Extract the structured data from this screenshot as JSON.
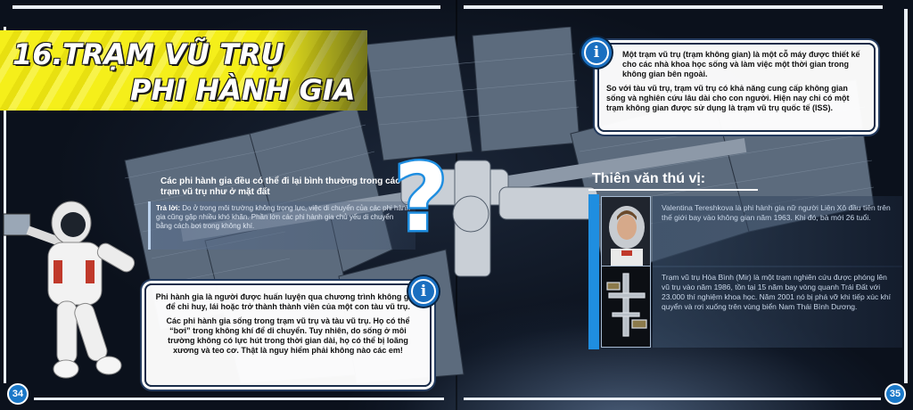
{
  "title": {
    "number": "16.",
    "line1": "TRẠM VŨ TRỤ",
    "line2": "PHI HÀNH  GIA"
  },
  "info_top": {
    "p1": "Một trạm vũ trụ (trạm không gian) là một cỗ máy được thiết kế cho các nhà khoa học sống và làm việc một thời gian trong không gian bên ngoài.",
    "p2": "So với tàu vũ trụ, trạm vũ trụ có khả năng cung cấp không gian sống và nghiên cứu lâu dài cho con người. Hiện nay chỉ có một trạm không gian được sử dụng là trạm vũ trụ quốc tế (ISS)."
  },
  "qa": {
    "question": "Các phi hành gia đều có thể đi lại bình thường trong các trạm vũ trụ như ở mặt đất",
    "answer_label": "Trả lời:",
    "answer": " Do ở trong môi trường không trọng lực, việc di chuyển của các phi hành gia cũng gặp nhiều khó khăn. Phần lớn các phi hành gia chủ yếu di chuyển bằng cách bơi trong không khí."
  },
  "info_bottom": {
    "p1": "Phi hành gia là người được huấn luyện qua chương trình không gian để chỉ huy, lái hoặc trở thành thành viên của một con tàu vũ trụ.",
    "p2": "Các phi hành gia sống trong trạm vũ trụ và tàu vũ trụ. Họ có thể “bơi” trong không khí để di chuyển. Tuy nhiên, do sống ở môi trường không có lực hút trong thời gian dài, họ có thể bị loãng xương và teo cơ. Thật là nguy hiểm phải không nào các em!"
  },
  "fun_facts": {
    "heading": "Thiên văn thú vị:",
    "items": [
      {
        "text": "Valentina Tereshkova là phi hành gia nữ người Liên Xô đầu tiên trên thế giới bay vào không gian năm 1963. Khi đó, bà mới 26 tuổi."
      },
      {
        "text": "Trạm vũ trụ Hòa Bình (Mir) là một trạm nghiên cứu được phóng lên vũ trụ vào năm 1986, tồn tại 15 năm bay vòng quanh Trái Đất với 23.000 thí nghiệm khoa học. Năm 2001 nó bị phá vỡ khi tiếp xúc khí quyển và rơi xuống trên vùng biển Nam Thái Bình Dương."
      }
    ]
  },
  "info_icon_glyph": "i",
  "question_mark": "?",
  "page_numbers": {
    "left": "34",
    "right": "35"
  },
  "colors": {
    "banner_yellow": "#f5ef1a",
    "accent_blue": "#1f8ee0",
    "navy": "#1a2d4a"
  }
}
